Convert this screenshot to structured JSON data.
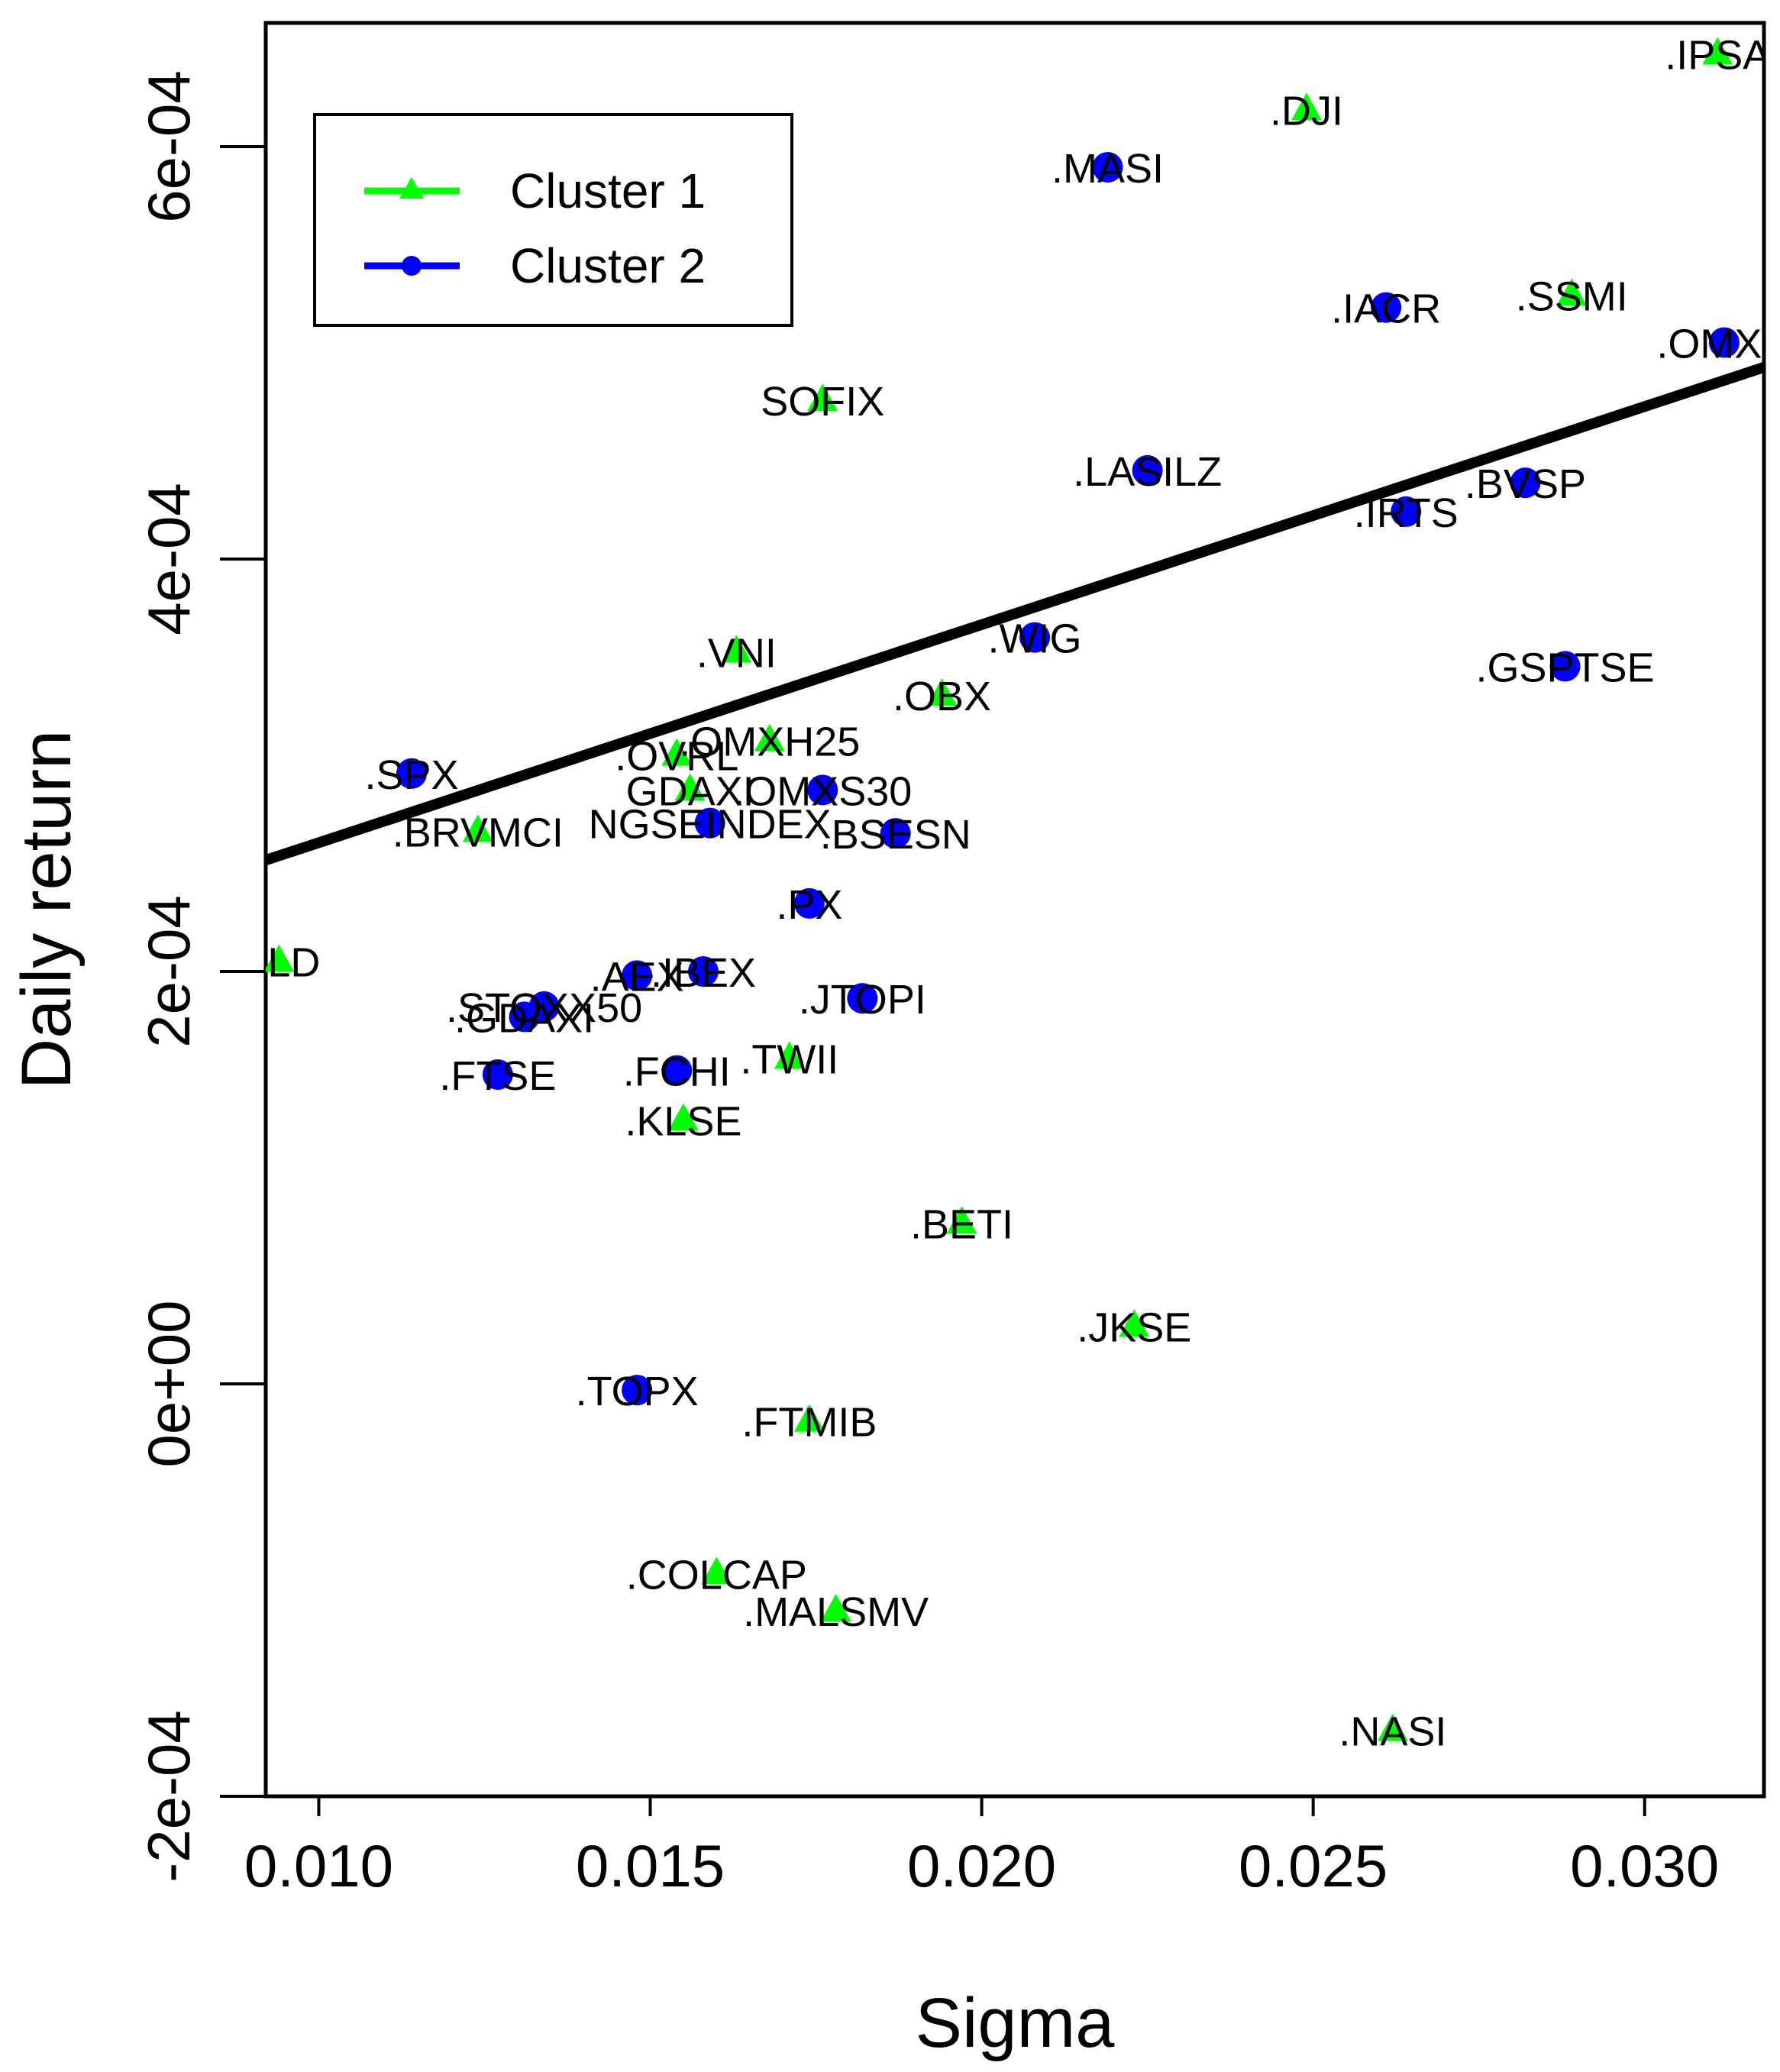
{
  "chart_data": {
    "type": "scatter",
    "xlabel": "Sigma",
    "ylabel": "Daily return",
    "xlim": [
      0.0092,
      0.0318
    ],
    "ylim": [
      -0.0002,
      0.00066
    ],
    "xticks": [
      0.01,
      0.015,
      0.02,
      0.025,
      0.03
    ],
    "xtick_labels": [
      "0.010",
      "0.015",
      "0.020",
      "0.025",
      "0.030"
    ],
    "yticks": [
      -0.0002,
      0.0,
      0.0002,
      0.0004,
      0.0006
    ],
    "ytick_labels": [
      "-2e-04",
      "0e+00",
      "2e-04",
      "4e-04",
      "6e-04"
    ],
    "grid": false,
    "legend_position": "top-left",
    "colors": {
      "cluster1": "#00ff00",
      "cluster2": "#0000ff",
      "line": "#000000"
    },
    "series": [
      {
        "name": "Cluster 1",
        "marker": "triangle",
        "color": "#00ff00",
        "points": [
          {
            "label": ".IPSA",
            "x": 0.0311,
            "y": 0.000645
          },
          {
            "label": ".DJI",
            "x": 0.0249,
            "y": 0.000618
          },
          {
            "label": ".SSMI",
            "x": 0.0289,
            "y": 0.000528
          },
          {
            "label": "SOFIX",
            "x": 0.0176,
            "y": 0.000477
          },
          {
            "label": ".VNI",
            "x": 0.0163,
            "y": 0.000355
          },
          {
            "label": ".OBX",
            "x": 0.0194,
            "y": 0.000334
          },
          {
            "label": ".OMXH25",
            "x": 0.0168,
            "y": 0.000312
          },
          {
            "label": ".OVRL",
            "x": 0.0154,
            "y": 0.000305
          },
          {
            "label": "GDAXI",
            "x": 0.0156,
            "y": 0.000288
          },
          {
            "label": ".BRVMCI",
            "x": 0.0124,
            "y": 0.000268
          },
          {
            "label": "RLD",
            "x": 0.0094,
            "y": 0.000205
          },
          {
            "label": ".TWII",
            "x": 0.0171,
            "y": 0.000158
          },
          {
            "label": ".KLSE",
            "x": 0.0155,
            "y": 0.000128
          },
          {
            "label": ".BETI",
            "x": 0.0197,
            "y": 7.8e-05
          },
          {
            "label": ".JKSE",
            "x": 0.0223,
            "y": 2.8e-05
          },
          {
            "label": ".FTMIB",
            "x": 0.0174,
            "y": -1.8e-05
          },
          {
            "label": ".COLCAP",
            "x": 0.016,
            "y": -9.2e-05
          },
          {
            "label": ".MALSMV",
            "x": 0.0178,
            "y": -0.00011
          },
          {
            "label": ".NASI",
            "x": 0.0262,
            "y": -0.000168
          }
        ]
      },
      {
        "name": "Cluster 2",
        "marker": "circle",
        "color": "#0000ff",
        "points": [
          {
            "label": ".MASI",
            "x": 0.0219,
            "y": 0.00059
          },
          {
            "label": ".IACR",
            "x": 0.0261,
            "y": 0.000522
          },
          {
            "label": ".OMXC",
            "x": 0.0312,
            "y": 0.000505
          },
          {
            "label": ".LASILZ",
            "x": 0.0225,
            "y": 0.000443
          },
          {
            "label": ".BVSP",
            "x": 0.0282,
            "y": 0.000437
          },
          {
            "label": ".IRTS",
            "x": 0.0264,
            "y": 0.000423
          },
          {
            "label": ".WIG",
            "x": 0.0208,
            "y": 0.000362
          },
          {
            "label": ".GSPTSE",
            "x": 0.0288,
            "y": 0.000348
          },
          {
            "label": ".SPX",
            "x": 0.0114,
            "y": 0.000296
          },
          {
            "label": ".OMXS30",
            "x": 0.0176,
            "y": 0.000288
          },
          {
            "label": "NGSEINDEX",
            "x": 0.0159,
            "y": 0.000272
          },
          {
            "label": ".BSESN",
            "x": 0.0187,
            "y": 0.000267
          },
          {
            "label": ".PX",
            "x": 0.0174,
            "y": 0.000233
          },
          {
            "label": ".AEX",
            "x": 0.0148,
            "y": 0.000198
          },
          {
            "label": ".IBEX",
            "x": 0.0158,
            "y": 0.0002
          },
          {
            "label": ".JTOPI",
            "x": 0.0182,
            "y": 0.000187
          },
          {
            "label": ".STOXX50",
            "x": 0.0134,
            "y": 0.000183
          },
          {
            "label": ".GDAXI",
            "x": 0.0131,
            "y": 0.000178
          },
          {
            "label": ".FCHI",
            "x": 0.0154,
            "y": 0.000152
          },
          {
            "label": ".FTSE",
            "x": 0.0127,
            "y": 0.00015
          },
          {
            "label": ".TOPX",
            "x": 0.0148,
            "y": -3e-06
          }
        ]
      }
    ],
    "regression_line": {
      "x": [
        0.0092,
        0.0318
      ],
      "y": [
        0.000254,
        0.000493
      ]
    },
    "legend": {
      "entries": [
        "Cluster 1",
        "Cluster 2"
      ]
    }
  }
}
